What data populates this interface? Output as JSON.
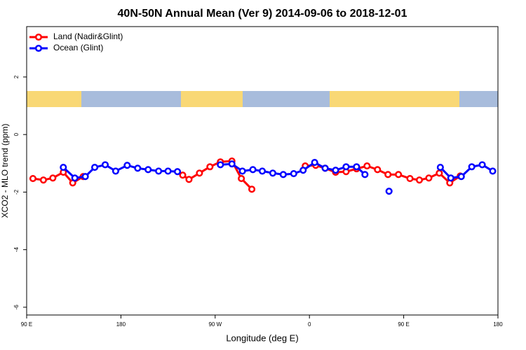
{
  "chart_data": {
    "type": "line",
    "title": "40N-50N Annual Mean (Ver 9)   2014-09-06 to 2018-12-01",
    "x_label": "Longitude (deg E)",
    "y_label": "XCO2 - MLO trend (ppm)",
    "xlim": [
      90,
      540
    ],
    "ylim": [
      -6.27,
      3.75
    ],
    "xticks": [
      {
        "value": 90,
        "label": "90 E"
      },
      180,
      {
        "value": 270,
        "label": "90 W"
      },
      {
        "value": 360,
        "label": "0"
      },
      {
        "value": 450,
        "label": "90 E"
      },
      {
        "value": 540,
        "label": "180"
      }
    ],
    "yticks": [
      2,
      0,
      -2,
      -4,
      -6
    ],
    "legend": "top-left",
    "series": [
      {
        "name": "Land (Nadir&Glint)",
        "color": "#ff0000",
        "x": [
          96,
          106,
          115,
          125,
          134,
          144,
          154,
          239,
          245,
          255,
          265,
          275,
          286,
          295,
          305,
          330,
          356,
          366,
          375,
          385,
          395,
          405,
          415,
          425,
          435,
          445,
          456,
          465,
          474,
          484,
          494,
          504
        ],
        "values": [
          -1.53,
          -1.58,
          -1.51,
          -1.31,
          -1.68,
          -1.46,
          null,
          -1.41,
          -1.56,
          -1.34,
          -1.12,
          -0.95,
          -0.92,
          -1.53,
          -1.9,
          null,
          -1.09,
          -1.07,
          -1.17,
          -1.31,
          -1.29,
          -1.19,
          -1.09,
          -1.22,
          -1.39,
          -1.39,
          -1.53,
          -1.58,
          -1.51,
          -1.34,
          -1.68,
          -1.44
        ]
      },
      {
        "name": "Ocean (Glint)",
        "color": "#0000ff",
        "x": [
          125,
          136,
          146,
          155,
          165,
          175,
          186,
          196,
          206,
          216,
          225,
          234,
          255,
          275,
          286,
          296,
          306,
          315,
          325,
          335,
          345,
          354,
          365,
          375,
          385,
          395,
          405,
          413,
          424,
          436,
          460,
          485,
          495,
          505,
          515,
          525,
          535
        ],
        "values": [
          -1.14,
          -1.51,
          -1.46,
          -1.14,
          -1.05,
          -1.27,
          -1.07,
          -1.17,
          -1.22,
          -1.27,
          -1.27,
          -1.29,
          null,
          -1.05,
          -1.02,
          -1.27,
          -1.22,
          -1.27,
          -1.34,
          -1.39,
          -1.36,
          -1.24,
          -0.97,
          -1.17,
          -1.24,
          -1.12,
          -1.12,
          -1.39,
          null,
          -1.97,
          null,
          -1.14,
          -1.51,
          -1.46,
          -1.12,
          -1.05,
          -1.27
        ]
      }
    ]
  }
}
